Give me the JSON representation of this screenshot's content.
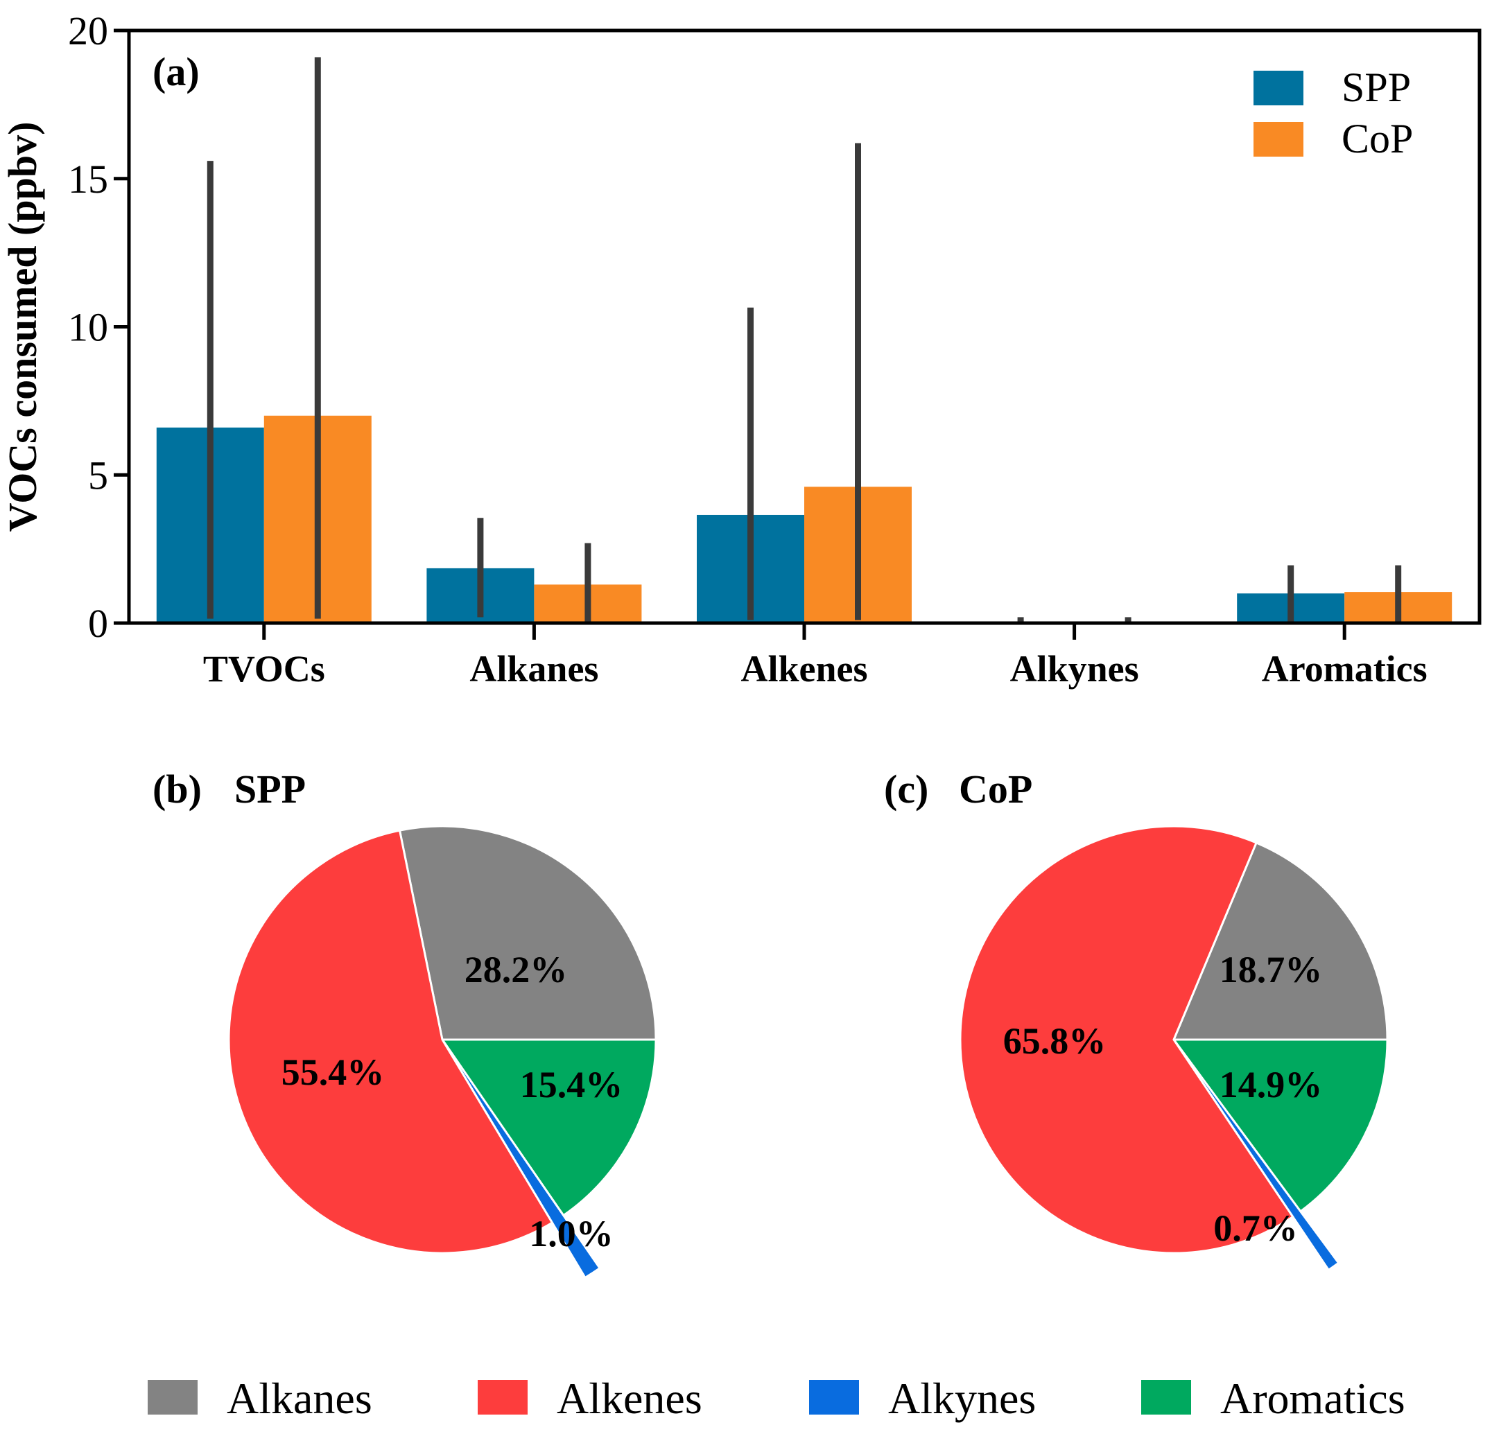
{
  "colors": {
    "spp": "#00729e",
    "cop": "#f98a24",
    "errorbar": "#3a3a3a",
    "alkanes": "#838383",
    "alkenes": "#fd3d3d",
    "alkynes": "#096cdf",
    "aromatics": "#00a95f"
  },
  "chart_data": [
    {
      "type": "bar",
      "panel_label": "(a)",
      "ylabel": "VOCs consumed (ppbv)",
      "ylim": [
        0,
        20
      ],
      "yticks": [
        0,
        5,
        10,
        15,
        20
      ],
      "categories": [
        "TVOCs",
        "Alkanes",
        "Alkenes",
        "Alkynes",
        "Aromatics"
      ],
      "series": [
        {
          "name": "SPP",
          "values": [
            6.6,
            1.85,
            3.65,
            0.0,
            1.0
          ],
          "err_low": [
            0.15,
            0.2,
            0.1,
            0.0,
            0.0
          ],
          "err_high": [
            15.6,
            3.55,
            10.65,
            0.2,
            1.95
          ]
        },
        {
          "name": "CoP",
          "values": [
            7.0,
            1.3,
            4.6,
            0.0,
            1.05
          ],
          "err_low": [
            0.15,
            0.0,
            0.1,
            0.0,
            0.0
          ],
          "err_high": [
            19.1,
            2.7,
            16.2,
            0.2,
            1.95
          ]
        }
      ],
      "legend_position": "top-right"
    },
    {
      "type": "pie",
      "panel_label": "(b)",
      "title": "SPP",
      "slices": [
        {
          "name": "Alkanes",
          "value": 28.2,
          "label": "28.2%"
        },
        {
          "name": "Aromatics",
          "value": 15.4,
          "label": "15.4%"
        },
        {
          "name": "Alkynes",
          "value": 1.0,
          "label": "1.0%",
          "exploded": true
        },
        {
          "name": "Alkenes",
          "value": 55.4,
          "label": "55.4%"
        }
      ]
    },
    {
      "type": "pie",
      "panel_label": "(c)",
      "title": "CoP",
      "slices": [
        {
          "name": "Alkanes",
          "value": 18.7,
          "label": "18.7%"
        },
        {
          "name": "Aromatics",
          "value": 14.9,
          "label": "14.9%"
        },
        {
          "name": "Alkynes",
          "value": 0.7,
          "label": "0.7%",
          "exploded": true
        },
        {
          "name": "Alkenes",
          "value": 65.8,
          "label": "65.8%"
        }
      ]
    }
  ],
  "legend": {
    "items": [
      "Alkanes",
      "Alkenes",
      "Alkynes",
      "Aromatics"
    ]
  }
}
